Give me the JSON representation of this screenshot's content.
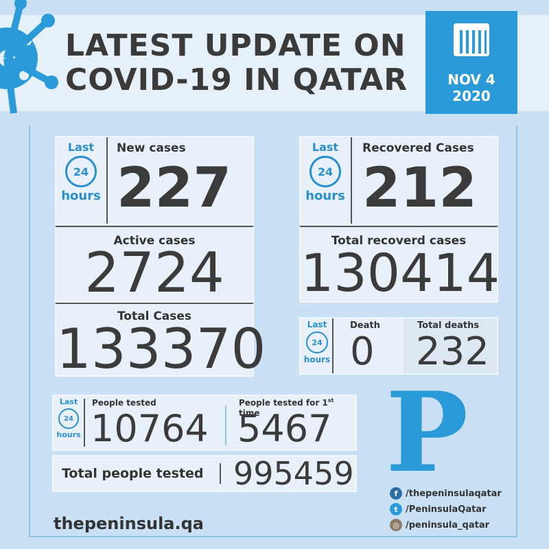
{
  "header": {
    "title_line1": "LATEST UPDATE ON",
    "title_line2": "COVID-19 IN QATAR",
    "date_line1": "NOV 4",
    "date_line2": "2020"
  },
  "last24": {
    "last": "Last",
    "num": "24",
    "hours": "hours"
  },
  "new_cases": {
    "label": "New cases",
    "value": "227"
  },
  "recovered": {
    "label": "Recovered Cases",
    "value": "212"
  },
  "active": {
    "label": "Active cases",
    "value": "2724"
  },
  "total_recovered": {
    "label": "Total recoverd cases",
    "value": "130414"
  },
  "total_cases": {
    "label": "Total Cases",
    "value": "133370"
  },
  "death": {
    "label": "Death",
    "value": "0"
  },
  "total_deaths": {
    "label": "Total deaths",
    "value": "232"
  },
  "tested": {
    "label": "People tested",
    "value": "10764"
  },
  "tested_first": {
    "label": "People tested for 1",
    "sup": "st",
    "label_end": " time",
    "value": "5467"
  },
  "total_tested": {
    "label": "Total people tested",
    "value": "995459"
  },
  "logo": "P",
  "social": [
    {
      "icon": "facebook-icon",
      "handle": "/thepeninsulaqatar",
      "color": "#2b6ea3"
    },
    {
      "icon": "twitter-icon",
      "handle": "/PeninsulaQatar",
      "color": "#2a9bd8"
    },
    {
      "icon": "instagram-icon",
      "handle": "/peninsula_qatar",
      "color": "#8a7a66"
    }
  ],
  "website": "thepeninsula.qa",
  "colors": {
    "accent": "#2a9bd8",
    "background": "#c9e0f5"
  }
}
